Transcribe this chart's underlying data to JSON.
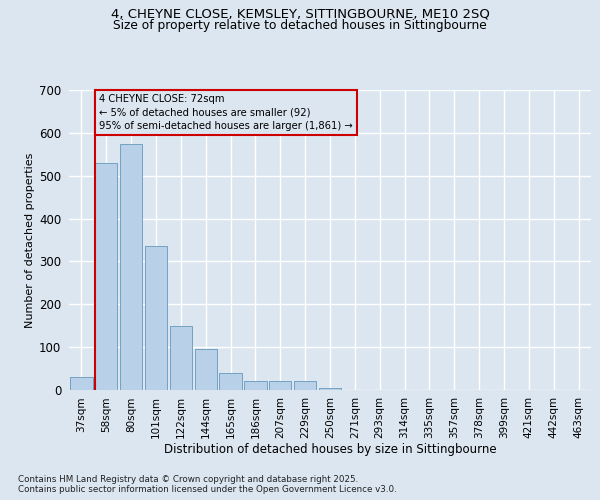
{
  "title_line1": "4, CHEYNE CLOSE, KEMSLEY, SITTINGBOURNE, ME10 2SQ",
  "title_line2": "Size of property relative to detached houses in Sittingbourne",
  "xlabel": "Distribution of detached houses by size in Sittingbourne",
  "ylabel": "Number of detached properties",
  "categories": [
    "37sqm",
    "58sqm",
    "80sqm",
    "101sqm",
    "122sqm",
    "144sqm",
    "165sqm",
    "186sqm",
    "207sqm",
    "229sqm",
    "250sqm",
    "271sqm",
    "293sqm",
    "314sqm",
    "335sqm",
    "357sqm",
    "378sqm",
    "399sqm",
    "421sqm",
    "442sqm",
    "463sqm"
  ],
  "values": [
    30,
    530,
    575,
    335,
    150,
    95,
    40,
    20,
    20,
    20,
    5,
    0,
    0,
    0,
    0,
    0,
    0,
    0,
    0,
    0,
    0
  ],
  "bar_color": "#b8d0e8",
  "bar_edge_color": "#6699bb",
  "background_color": "#dce6f0",
  "grid_color": "#ffffff",
  "annotation_text": "4 CHEYNE CLOSE: 72sqm\n← 5% of detached houses are smaller (92)\n95% of semi-detached houses are larger (1,861) →",
  "vline_color": "#cc0000",
  "annotation_box_edgecolor": "#cc0000",
  "ylim_max": 700,
  "yticks": [
    0,
    100,
    200,
    300,
    400,
    500,
    600,
    700
  ],
  "footnote_line1": "Contains HM Land Registry data © Crown copyright and database right 2025.",
  "footnote_line2": "Contains public sector information licensed under the Open Government Licence v3.0."
}
